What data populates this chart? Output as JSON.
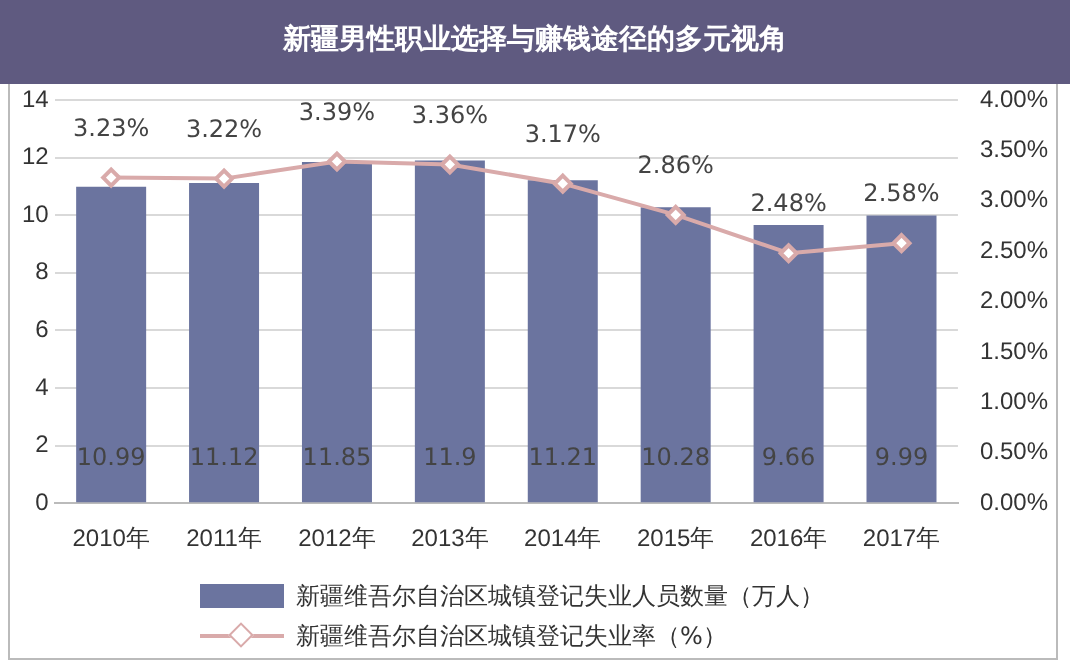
{
  "chart_data": {
    "type": "bar",
    "title": "新疆男性职业选择与赚钱途径的多元视角",
    "categories": [
      "2010年",
      "2011年",
      "2012年",
      "2013年",
      "2014年",
      "2015年",
      "2016年",
      "2017年"
    ],
    "series": [
      {
        "name": "新疆维吾尔自治区城镇登记失业人员数量（万人）",
        "type": "bar",
        "color": "#6b749f",
        "values": [
          10.99,
          11.12,
          11.85,
          11.9,
          11.21,
          10.28,
          9.66,
          9.99
        ],
        "value_labels": [
          "10.99",
          "11.12",
          "11.85",
          "11.9",
          "11.21",
          "10.28",
          "9.66",
          "9.99"
        ]
      },
      {
        "name": "新疆维吾尔自治区城镇登记失业率（%）",
        "type": "line",
        "axis": "y2",
        "color": "#d9aaaa",
        "marker": "diamond",
        "values": [
          3.23,
          3.22,
          3.39,
          3.36,
          3.17,
          2.86,
          2.48,
          2.58
        ],
        "value_labels": [
          "3.23%",
          "3.22%",
          "3.39%",
          "3.36%",
          "3.17%",
          "2.86%",
          "2.48%",
          "2.58%"
        ]
      }
    ],
    "ylim": [
      0,
      14
    ],
    "yticks": [
      0,
      2,
      4,
      6,
      8,
      10,
      12,
      14
    ],
    "y2lim": [
      0,
      4
    ],
    "y2ticks": [
      {
        "value": 0,
        "label": "0.00%"
      },
      {
        "value": 0.5,
        "label": "0.50%"
      },
      {
        "value": 1,
        "label": "1.00%"
      },
      {
        "value": 1.5,
        "label": "1.50%"
      },
      {
        "value": 2,
        "label": "2.00%"
      },
      {
        "value": 2.5,
        "label": "2.50%"
      },
      {
        "value": 3,
        "label": "3.00%"
      },
      {
        "value": 3.5,
        "label": "3.50%"
      },
      {
        "value": 4,
        "label": "4.00%"
      }
    ],
    "grid": "y",
    "legend": "bottom"
  }
}
